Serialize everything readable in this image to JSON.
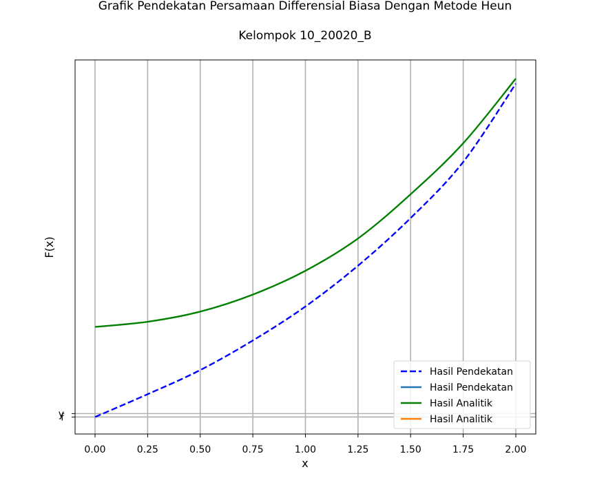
{
  "chart_data": {
    "type": "line",
    "title": "Grafik Pendekatan Persamaan Differensial Biasa Dengan Metode Heun",
    "subtitle": "Kelompok 10_20020_B",
    "xlabel": "x",
    "ylabel": "F(x)",
    "xlim": [
      -0.095,
      2.095
    ],
    "ylim": [
      -0.5,
      10.5
    ],
    "grid": true,
    "legend_position": "lower-right",
    "x_ticks": [
      0.0,
      0.25,
      0.5,
      0.75,
      1.0,
      1.25,
      1.5,
      1.75,
      2.0
    ],
    "x_tick_labels": [
      "0.00",
      "0.25",
      "0.50",
      "0.75",
      "1.00",
      "1.25",
      "1.50",
      "1.75",
      "2.00"
    ],
    "y_ticks": [
      0.1,
      0.0
    ],
    "y_tick_labels": [
      "y",
      "f"
    ],
    "series": [
      {
        "name": "Hasil Pendekatan",
        "style": "dashed",
        "color": "#0000ff",
        "x": [
          0.0,
          0.25,
          0.5,
          0.75,
          1.0,
          1.25,
          1.5,
          1.75,
          2.0
        ],
        "y": [
          0.0,
          0.67,
          1.38,
          2.25,
          3.25,
          4.45,
          5.85,
          7.5,
          9.8
        ]
      },
      {
        "name": "Hasil Pendekatan",
        "style": "solid",
        "color": "#1f77b4",
        "x": [],
        "y": []
      },
      {
        "name": "Hasil Analitik",
        "style": "solid",
        "color": "#008000",
        "x": [
          0.0,
          0.25,
          0.5,
          0.75,
          1.0,
          1.25,
          1.5,
          1.75,
          2.0
        ],
        "y": [
          2.65,
          2.8,
          3.1,
          3.6,
          4.3,
          5.25,
          6.55,
          8.05,
          9.95
        ]
      },
      {
        "name": "Hasil Analitik",
        "style": "solid",
        "color": "#ff7f0e",
        "x": [],
        "y": []
      }
    ]
  }
}
